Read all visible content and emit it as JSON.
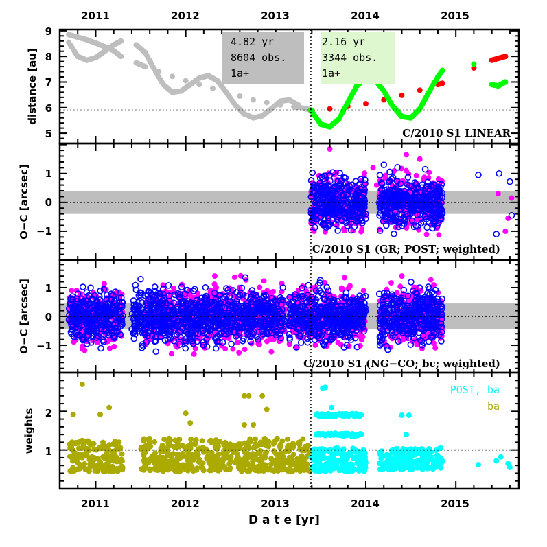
{
  "chart_data": [
    {
      "type": "scatter",
      "panel": "distance",
      "ylabel": "distance [au]",
      "ylim": [
        4.6,
        9.05
      ],
      "xlim": [
        2010.6,
        2015.7
      ],
      "yticks": [
        5,
        6,
        7,
        8,
        9
      ],
      "reference_line_y": 5.9,
      "split_date": 2013.39,
      "label": "C/2010 S1 LINEAR",
      "annotations": [
        {
          "lines": [
            "4.82 yr",
            "8604 obs.",
            "1a+"
          ],
          "color": "#bebebe"
        },
        {
          "lines": [
            "2.16 yr",
            "3344 obs.",
            "1a+"
          ],
          "color": "#dff7cf"
        }
      ],
      "series": [
        {
          "name": "pre-perihelion distance curve 1",
          "color": "#bebebe",
          "x": [
            2010.7,
            2010.8,
            2010.9,
            2011.0,
            2011.1,
            2011.2,
            2011.28,
            2011.45,
            2011.55,
            2011.7,
            2011.85,
            2012.0,
            2012.15,
            2012.3,
            2012.45,
            2012.6,
            2012.75,
            2012.9,
            2013.05,
            2013.2,
            2013.3,
            2013.38
          ],
          "y": [
            8.85,
            8.75,
            8.65,
            8.52,
            8.38,
            8.22,
            8.0,
            7.75,
            7.6,
            7.4,
            7.22,
            7.05,
            6.9,
            6.75,
            6.6,
            6.45,
            6.3,
            6.2,
            6.1,
            6.03,
            5.98,
            5.92
          ]
        },
        {
          "name": "pre-perihelion distance curve 2",
          "color": "#bebebe",
          "x": [
            2010.7,
            2010.8,
            2010.9,
            2011.0,
            2011.1,
            2011.2,
            2011.28,
            2011.45,
            2011.55,
            2011.65,
            2011.75,
            2011.85,
            2011.95,
            2012.05,
            2012.15,
            2012.25,
            2012.35,
            2012.45,
            2012.55,
            2012.65,
            2012.75,
            2012.85,
            2012.95,
            2013.05,
            2013.15,
            2013.25,
            2013.38
          ],
          "y": [
            8.55,
            8.0,
            7.85,
            7.95,
            8.2,
            8.45,
            8.6,
            8.45,
            8.15,
            7.5,
            6.9,
            6.6,
            6.65,
            6.9,
            7.15,
            7.25,
            7.05,
            6.6,
            6.1,
            5.75,
            5.6,
            5.68,
            5.95,
            6.25,
            6.3,
            6.1,
            5.9
          ]
        },
        {
          "name": "post-perihelion heliocentric distance",
          "color": "#ff0000",
          "x": [
            2013.39,
            2013.6,
            2013.8,
            2014.0,
            2014.2,
            2014.4,
            2014.6,
            2014.8,
            2014.85,
            2015.2,
            2015.4,
            2015.47,
            2015.55
          ],
          "y": [
            5.9,
            5.95,
            6.05,
            6.15,
            6.3,
            6.48,
            6.68,
            6.9,
            6.95,
            7.55,
            7.85,
            7.92,
            8.0
          ]
        },
        {
          "name": "post-perihelion geocentric distance",
          "color": "#00ff00",
          "x": [
            2013.39,
            2013.5,
            2013.6,
            2013.7,
            2013.8,
            2013.9,
            2014.0,
            2014.1,
            2014.2,
            2014.3,
            2014.4,
            2014.5,
            2014.6,
            2014.7,
            2014.8,
            2014.85,
            2015.2,
            2015.4,
            2015.47,
            2015.55
          ],
          "y": [
            5.9,
            5.35,
            5.25,
            5.55,
            6.2,
            6.85,
            7.15,
            7.1,
            6.65,
            6.05,
            5.65,
            5.6,
            5.95,
            6.6,
            7.2,
            7.45,
            7.7,
            6.9,
            6.85,
            7.0
          ]
        }
      ]
    },
    {
      "type": "scatter",
      "panel": "O-C GR POST",
      "ylabel": "O−C [arcsec]",
      "ylim": [
        -2.0,
        2.04
      ],
      "yticks": [
        -1,
        0,
        1
      ],
      "band": [
        -0.4,
        0.4
      ],
      "label": "C/2010 S1 (GR; POST; weighted)",
      "series": [
        {
          "name": "O-C magenta (filled)",
          "color": "#ff00ff",
          "marker": "filled",
          "clusters": [
            {
              "x": [
                2013.39,
                2014.0
              ],
              "y_spread": 0.8
            },
            {
              "x": [
                2014.15,
                2014.85
              ],
              "y_spread": 0.8
            }
          ],
          "outliers_x": [
            2013.6,
            2014.08,
            2014.12,
            2014.45,
            2014.6,
            2015.47,
            2015.62,
            2015.58,
            2015.55
          ],
          "outliers_y": [
            1.85,
            1.2,
            0.6,
            1.65,
            1.5,
            0.3,
            0.15,
            -0.55,
            -1.0
          ]
        },
        {
          "name": "O-C blue (open)",
          "color": "#0000ff",
          "marker": "open",
          "clusters": [
            {
              "x": [
                2013.39,
                2014.0
              ],
              "y_spread": 0.75
            },
            {
              "x": [
                2014.15,
                2014.85
              ],
              "y_spread": 0.75
            }
          ],
          "outliers_x": [
            2014.2,
            2015.25,
            2015.48,
            2015.6,
            2015.62,
            2015.45
          ],
          "outliers_y": [
            1.3,
            0.95,
            1.0,
            0.72,
            -0.45,
            -1.1
          ]
        }
      ]
    },
    {
      "type": "scatter",
      "panel": "O-C NG-CO bc",
      "ylabel": "O−C [arcsec]",
      "ylim": [
        -1.95,
        1.95
      ],
      "yticks": [
        -1,
        0,
        1
      ],
      "band": [
        -0.45,
        0.45
      ],
      "label": "C/2010 S1 (NG−CO; bc; weighted)",
      "series": [
        {
          "name": "O-C magenta (filled)",
          "color": "#ff00ff",
          "marker": "filled",
          "clusters": [
            {
              "x": [
                2010.7,
                2011.3
              ],
              "y_spread": 0.85
            },
            {
              "x": [
                2011.55,
                2013.1
              ],
              "y_spread": 0.9
            },
            {
              "x": [
                2013.15,
                2014.0
              ],
              "y_spread": 0.85
            },
            {
              "x": [
                2014.15,
                2014.85
              ],
              "y_spread": 0.85
            }
          ]
        },
        {
          "name": "O-C blue (open)",
          "color": "#0000ff",
          "marker": "open",
          "clusters": [
            {
              "x": [
                2010.7,
                2011.3
              ],
              "y_spread": 0.75
            },
            {
              "x": [
                2011.4,
                2013.1
              ],
              "y_spread": 0.8
            },
            {
              "x": [
                2013.15,
                2014.0
              ],
              "y_spread": 0.8
            },
            {
              "x": [
                2014.15,
                2014.85
              ],
              "y_spread": 0.8
            }
          ]
        }
      ]
    },
    {
      "type": "scatter",
      "panel": "weights",
      "ylabel": "weights",
      "ylim": [
        0.0,
        3.0
      ],
      "yticks": [
        1,
        2
      ],
      "reference_line_y": 1.0,
      "xlabel": "D a t e [yr]",
      "xticks": [
        2011,
        2012,
        2013,
        2014,
        2015
      ],
      "legend": [
        {
          "label": "POST, ba",
          "color": "#00ffff"
        },
        {
          "label": "ba",
          "color": "#aaaa00"
        }
      ],
      "legend_position": "top-right",
      "series": [
        {
          "name": "ba",
          "color": "#aaaa00",
          "clusters": [
            {
              "x": [
                2010.7,
                2011.3
              ],
              "y": [
                0.45,
                1.25
              ]
            },
            {
              "x": [
                2011.5,
                2013.38
              ],
              "y": [
                0.45,
                1.3
              ]
            }
          ],
          "outliers_x": [
            2010.85,
            2010.75,
            2011.15,
            2011.05,
            2012.0,
            2012.05,
            2012.65,
            2012.7,
            2012.85,
            2012.9,
            2012.65,
            2012.75
          ],
          "outliers_y": [
            2.7,
            1.92,
            2.1,
            1.92,
            1.95,
            1.7,
            2.4,
            2.4,
            2.4,
            2.05,
            1.65,
            1.65
          ]
        },
        {
          "name": "POST, ba",
          "color": "#00ffff",
          "clusters": [
            {
              "x": [
                2013.39,
                2014.0
              ],
              "y": [
                0.45,
                1.05
              ]
            },
            {
              "x": [
                2014.15,
                2014.85
              ],
              "y": [
                0.5,
                1.05
              ]
            }
          ],
          "bands_x": [
            [
              2013.45,
              2013.95
            ],
            [
              2013.45,
              2013.95
            ]
          ],
          "bands_y": [
            1.9,
            1.4
          ],
          "outliers_x": [
            2013.52,
            2013.55,
            2013.62,
            2014.4,
            2014.48,
            2014.45,
            2015.25,
            2015.45,
            2015.5,
            2015.58,
            2015.6
          ],
          "outliers_y": [
            2.6,
            2.62,
            2.1,
            1.9,
            1.9,
            1.4,
            0.62,
            0.72,
            0.82,
            0.65,
            0.55
          ]
        }
      ]
    }
  ],
  "x_axis": {
    "top_tick_labels": [
      "2011",
      "2012",
      "2013",
      "2014",
      "2015"
    ],
    "bottom_tick_labels": [
      "2011",
      "2012",
      "2013",
      "2014",
      "2015"
    ],
    "title": "D a t e [yr]"
  },
  "panels": {
    "distance": {
      "ylabel": "distance [au]",
      "ytick_labels": [
        "5",
        "6",
        "7",
        "8",
        "9"
      ],
      "label": "C/2010 S1 LINEAR",
      "box_pre": {
        "line1": "4.82 yr",
        "line2": "8604 obs.",
        "line3": "1a+"
      },
      "box_post": {
        "line1": "2.16 yr",
        "line2": "3344 obs.",
        "line3": "1a+"
      }
    },
    "oc_gr": {
      "ylabel": "O−C [arcsec]",
      "ytick_labels": [
        "1",
        "0",
        "−1"
      ],
      "label": "C/2010 S1 (GR; POST; weighted)"
    },
    "oc_ng": {
      "ylabel": "O−C [arcsec]",
      "ytick_labels": [
        "1",
        "0",
        "−1"
      ],
      "label": "C/2010 S1 (NG−CO; bc; weighted)"
    },
    "weights": {
      "ylabel": "weights",
      "ytick_labels": [
        "2",
        "1"
      ],
      "legend_post": "POST, ba",
      "legend_ba": "ba"
    }
  },
  "colors": {
    "grey": "#bebebe",
    "red": "#ff0000",
    "green": "#00ff00",
    "magenta": "#ff00ff",
    "blue": "#0000ff",
    "olive": "#aaaa00",
    "cyan": "#00ffff",
    "box_pre": "#bebebe",
    "box_post": "#dff7cf",
    "band": "#bebebe"
  }
}
